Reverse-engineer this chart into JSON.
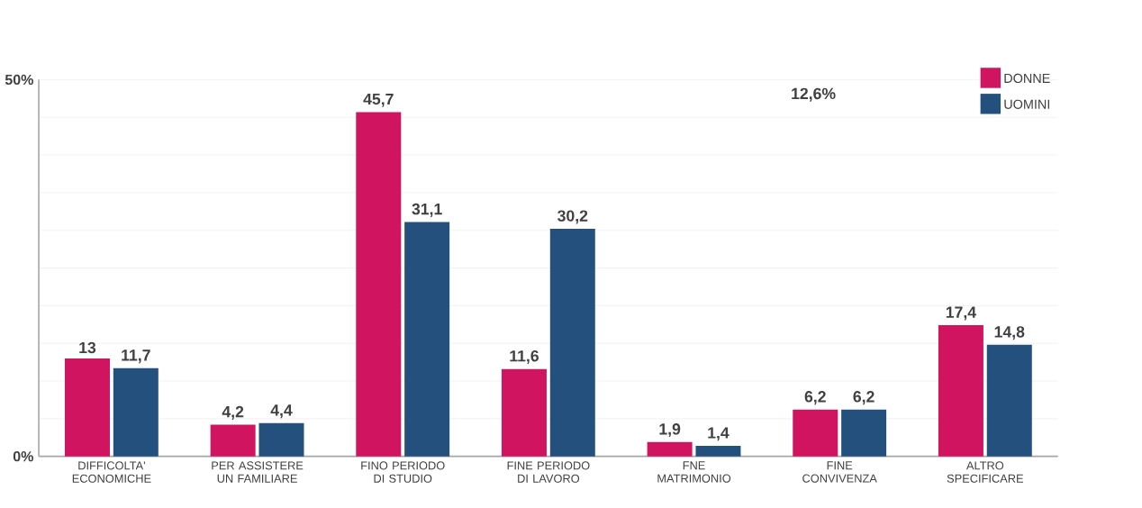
{
  "chart_data": {
    "type": "bar",
    "categories": [
      "DIFFICOLTA' ECONOMICHE",
      "PER ASSISTERE UN FAMILIARE",
      "FINO PERIODO DI STUDIO",
      "FINE PERIODO DI LAVORO",
      "FNE MATRIMONIO",
      "FINE CONVIVENZA",
      "ALTRO SPECIFICARE"
    ],
    "series": [
      {
        "name": "DONNE",
        "color": "#d0145f",
        "values": [
          13,
          4.2,
          45.7,
          11.6,
          1.9,
          6.2,
          17.4
        ],
        "value_labels": [
          "13",
          "4,2",
          "45,7",
          "11,6",
          "1,9",
          "6,2",
          "17,4"
        ]
      },
      {
        "name": "UOMINI",
        "color": "#24507e",
        "values": [
          11.7,
          4.4,
          31.1,
          30.2,
          1.4,
          6.2,
          14.8
        ],
        "value_labels": [
          "11,7",
          "4,4",
          "31,1",
          "30,2",
          "1,4",
          "6,2",
          "14,8"
        ]
      }
    ],
    "ylim": [
      0,
      50
    ],
    "yticks": [
      {
        "value": 0,
        "label": "0%"
      },
      {
        "value": 5,
        "label": null
      },
      {
        "value": 10,
        "label": null
      },
      {
        "value": 15,
        "label": null
      },
      {
        "value": 20,
        "label": null
      },
      {
        "value": 25,
        "label": null
      },
      {
        "value": 30,
        "label": null
      },
      {
        "value": 35,
        "label": null
      },
      {
        "value": 40,
        "label": null
      },
      {
        "value": 45,
        "label": null
      },
      {
        "value": 50,
        "label": "50%"
      }
    ],
    "grid": "y",
    "legend": "top right",
    "annotations": [
      "12,6%"
    ]
  }
}
